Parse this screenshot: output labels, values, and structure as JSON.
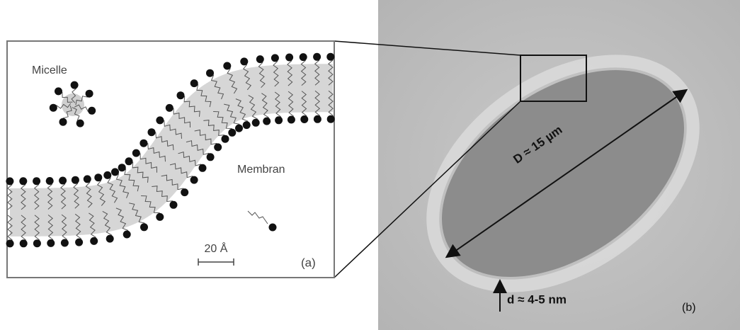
{
  "panel_a": {
    "micelle_label": "Micelle",
    "membrane_label": "Membran",
    "scale_label": "20 Å",
    "panel_label": "(a)"
  },
  "panel_b": {
    "diameter_label": "D ≈ 15 µm",
    "thickness_label": "d ≈ 4-5 nm",
    "panel_label": "(b)"
  }
}
